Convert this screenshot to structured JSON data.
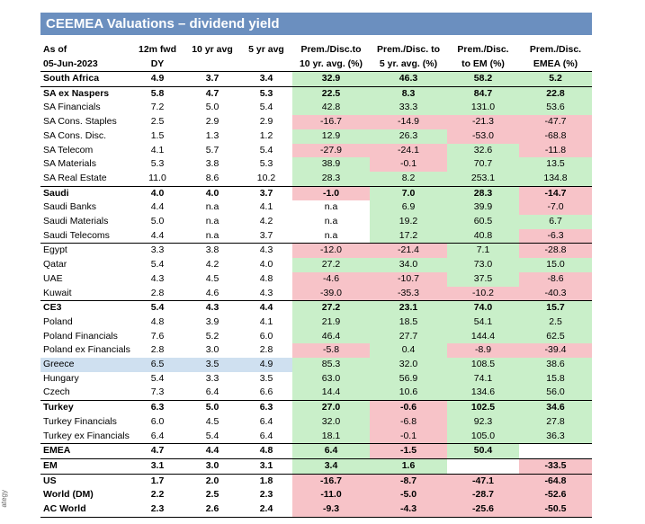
{
  "side_label": "ategy",
  "title": "CEEMEA Valuations – dividend yield",
  "headers": {
    "row1": [
      "As of",
      "12m fwd",
      "10 yr avg",
      "5 yr avg",
      "Prem./Disc.to",
      "Prem./Disc. to",
      "Prem./Disc.",
      "Prem./Disc."
    ],
    "row2": [
      "05-Jun-2023",
      "DY",
      "",
      "",
      "10 yr. avg. (%)",
      "5 yr. avg. (%)",
      "to EM (%)",
      "EMEA (%)"
    ]
  },
  "colors": {
    "title_bg": "#6b8fbf",
    "green": "#c9efc9",
    "red": "#f7c3c8",
    "highlight": "#cfe0f0"
  },
  "rows": [
    {
      "name": "South Africa",
      "bold": true,
      "top": true,
      "vals": [
        "4.9",
        "3.7",
        "3.4",
        "32.9",
        "46.3",
        "58.2",
        "5.2"
      ],
      "c": [
        "g",
        "g",
        "g",
        "g"
      ]
    },
    {
      "name": "SA ex Naspers",
      "bold": true,
      "top": true,
      "vals": [
        "5.8",
        "4.7",
        "5.3",
        "22.5",
        "8.3",
        "84.7",
        "22.8"
      ],
      "c": [
        "g",
        "g",
        "g",
        "g"
      ]
    },
    {
      "name": "SA Financials",
      "vals": [
        "7.2",
        "5.0",
        "5.4",
        "42.8",
        "33.3",
        "131.0",
        "53.6"
      ],
      "c": [
        "g",
        "g",
        "g",
        "g"
      ]
    },
    {
      "name": "SA Cons. Staples",
      "vals": [
        "2.5",
        "2.9",
        "2.9",
        "-16.7",
        "-14.9",
        "-21.3",
        "-47.7"
      ],
      "c": [
        "r",
        "r",
        "r",
        "r"
      ]
    },
    {
      "name": "SA Cons. Disc.",
      "vals": [
        "1.5",
        "1.3",
        "1.2",
        "12.9",
        "26.3",
        "-53.0",
        "-68.8"
      ],
      "c": [
        "g",
        "g",
        "r",
        "r"
      ]
    },
    {
      "name": "SA Telecom",
      "vals": [
        "4.1",
        "5.7",
        "5.4",
        "-27.9",
        "-24.1",
        "32.6",
        "-11.8"
      ],
      "c": [
        "r",
        "r",
        "g",
        "r"
      ]
    },
    {
      "name": "SA Materials",
      "vals": [
        "5.3",
        "3.8",
        "5.3",
        "38.9",
        "-0.1",
        "70.7",
        "13.5"
      ],
      "c": [
        "g",
        "r",
        "g",
        "g"
      ]
    },
    {
      "name": "SA Real Estate",
      "vals": [
        "11.0",
        "8.6",
        "10.2",
        "28.3",
        "8.2",
        "253.1",
        "134.8"
      ],
      "c": [
        "g",
        "g",
        "g",
        "g"
      ]
    },
    {
      "name": "Saudi",
      "bold": true,
      "top": true,
      "vals": [
        "4.0",
        "4.0",
        "3.7",
        "-1.0",
        "7.0",
        "28.3",
        "-14.7"
      ],
      "c": [
        "r",
        "g",
        "g",
        "r"
      ]
    },
    {
      "name": "Saudi Banks",
      "vals": [
        "4.4",
        "n.a",
        "4.1",
        "n.a",
        "6.9",
        "39.9",
        "-7.0"
      ],
      "c": [
        "w",
        "g",
        "g",
        "r"
      ]
    },
    {
      "name": "Saudi Materials",
      "vals": [
        "5.0",
        "n.a",
        "4.2",
        "n.a",
        "19.2",
        "60.5",
        "6.7"
      ],
      "c": [
        "w",
        "g",
        "g",
        "g"
      ]
    },
    {
      "name": "Saudi Telecoms",
      "vals": [
        "4.4",
        "n.a",
        "3.7",
        "n.a",
        "17.2",
        "40.8",
        "-6.3"
      ],
      "c": [
        "w",
        "g",
        "g",
        "r"
      ]
    },
    {
      "name": "Egypt",
      "top": true,
      "vals": [
        "3.3",
        "3.8",
        "4.3",
        "-12.0",
        "-21.4",
        "7.1",
        "-28.8"
      ],
      "c": [
        "r",
        "r",
        "g",
        "r"
      ]
    },
    {
      "name": "Qatar",
      "vals": [
        "5.4",
        "4.2",
        "4.0",
        "27.2",
        "34.0",
        "73.0",
        "15.0"
      ],
      "c": [
        "g",
        "g",
        "g",
        "g"
      ]
    },
    {
      "name": "UAE",
      "vals": [
        "4.3",
        "4.5",
        "4.8",
        "-4.6",
        "-10.7",
        "37.5",
        "-8.6"
      ],
      "c": [
        "r",
        "r",
        "g",
        "r"
      ]
    },
    {
      "name": "Kuwait",
      "vals": [
        "2.8",
        "4.6",
        "4.3",
        "-39.0",
        "-35.3",
        "-10.2",
        "-40.3"
      ],
      "c": [
        "r",
        "r",
        "r",
        "r"
      ]
    },
    {
      "name": "CE3",
      "bold": true,
      "top": true,
      "vals": [
        "5.4",
        "4.3",
        "4.4",
        "27.2",
        "23.1",
        "74.0",
        "15.7"
      ],
      "c": [
        "g",
        "g",
        "g",
        "g"
      ]
    },
    {
      "name": "Poland",
      "vals": [
        "4.8",
        "3.9",
        "4.1",
        "21.9",
        "18.5",
        "54.1",
        "2.5"
      ],
      "c": [
        "g",
        "g",
        "g",
        "g"
      ]
    },
    {
      "name": "Poland Financials",
      "vals": [
        "7.6",
        "5.2",
        "6.0",
        "46.4",
        "27.7",
        "144.4",
        "62.5"
      ],
      "c": [
        "g",
        "g",
        "g",
        "g"
      ]
    },
    {
      "name": "Poland ex Financials",
      "vals": [
        "2.8",
        "3.0",
        "2.8",
        "-5.8",
        "0.4",
        "-8.9",
        "-39.4"
      ],
      "c": [
        "r",
        "g",
        "r",
        "r"
      ]
    },
    {
      "name": "Greece",
      "hl": true,
      "vals": [
        "6.5",
        "3.5",
        "4.9",
        "85.3",
        "32.0",
        "108.5",
        "38.6"
      ],
      "c": [
        "g",
        "g",
        "g",
        "g"
      ]
    },
    {
      "name": "Hungary",
      "vals": [
        "5.4",
        "3.3",
        "3.5",
        "63.0",
        "56.9",
        "74.1",
        "15.8"
      ],
      "c": [
        "g",
        "g",
        "g",
        "g"
      ]
    },
    {
      "name": "Czech",
      "vals": [
        "7.3",
        "6.4",
        "6.6",
        "14.4",
        "10.6",
        "134.6",
        "56.0"
      ],
      "c": [
        "g",
        "g",
        "g",
        "g"
      ]
    },
    {
      "name": "Turkey",
      "bold": true,
      "top": true,
      "vals": [
        "6.3",
        "5.0",
        "6.3",
        "27.0",
        "-0.6",
        "102.5",
        "34.6"
      ],
      "c": [
        "g",
        "r",
        "g",
        "g"
      ]
    },
    {
      "name": "Turkey Financials",
      "vals": [
        "6.0",
        "4.5",
        "6.4",
        "32.0",
        "-6.8",
        "92.3",
        "27.8"
      ],
      "c": [
        "g",
        "r",
        "g",
        "g"
      ]
    },
    {
      "name": "Turkey ex Financials",
      "vals": [
        "6.4",
        "5.4",
        "6.4",
        "18.1",
        "-0.1",
        "105.0",
        "36.3"
      ],
      "c": [
        "g",
        "r",
        "g",
        "g"
      ]
    },
    {
      "name": "EMEA",
      "bold": true,
      "top": true,
      "vals": [
        "4.7",
        "4.4",
        "4.8",
        "6.4",
        "-1.5",
        "50.4",
        ""
      ],
      "c": [
        "g",
        "r",
        "g",
        "w"
      ]
    },
    {
      "name": "EM",
      "bold": true,
      "top": true,
      "vals": [
        "3.1",
        "3.0",
        "3.1",
        "3.4",
        "1.6",
        "",
        "-33.5"
      ],
      "c": [
        "g",
        "g",
        "w",
        "r"
      ]
    },
    {
      "name": "US",
      "bold": true,
      "top": true,
      "vals": [
        "1.7",
        "2.0",
        "1.8",
        "-16.7",
        "-8.7",
        "-47.1",
        "-64.8"
      ],
      "c": [
        "r",
        "r",
        "r",
        "r"
      ]
    },
    {
      "name": "World (DM)",
      "bold": true,
      "vals": [
        "2.2",
        "2.5",
        "2.3",
        "-11.0",
        "-5.0",
        "-28.7",
        "-52.6"
      ],
      "c": [
        "r",
        "r",
        "r",
        "r"
      ]
    },
    {
      "name": "AC World",
      "bold": true,
      "bottom": true,
      "vals": [
        "2.3",
        "2.6",
        "2.4",
        "-9.3",
        "-4.3",
        "-25.6",
        "-50.5"
      ],
      "c": [
        "r",
        "r",
        "r",
        "r"
      ]
    }
  ]
}
